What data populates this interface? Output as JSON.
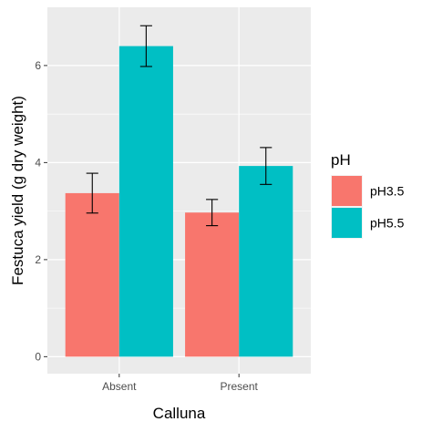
{
  "chart_data": {
    "type": "bar",
    "categories": [
      "Absent",
      "Present"
    ],
    "xlabel": "Calluna",
    "ylabel": "Festuca yield (g dry weight)",
    "ylim": [
      -0.35,
      7.2
    ],
    "yticks": [
      0,
      2,
      4,
      6
    ],
    "grid": true,
    "legend": {
      "title": "pH",
      "placement": "right"
    },
    "series": [
      {
        "name": "pH3.5",
        "color": "#F8766D",
        "values": [
          3.37,
          2.97
        ],
        "error_low": [
          2.96,
          2.7
        ],
        "error_high": [
          3.78,
          3.24
        ]
      },
      {
        "name": "pH5.5",
        "color": "#00BFC4",
        "values": [
          6.4,
          3.93
        ],
        "error_low": [
          5.98,
          3.55
        ],
        "error_high": [
          6.82,
          4.31
        ]
      }
    ]
  }
}
